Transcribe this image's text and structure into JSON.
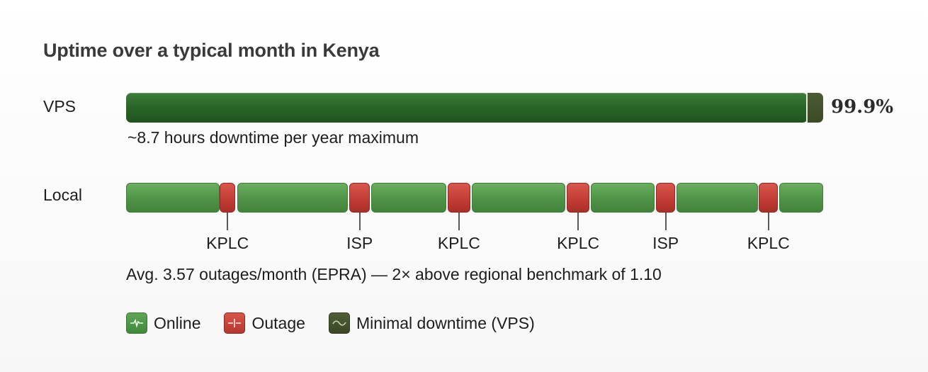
{
  "title": "Uptime over a typical month in Kenya",
  "colors": {
    "online": "#4f9347",
    "outage": "#c13b33",
    "vps_fill": "#2a6628",
    "minimal_downtime": "#3c4a27"
  },
  "vps": {
    "label": "VPS",
    "value_label": "99.9%",
    "uptime_fraction": 0.999,
    "caption": "~8.7 hours downtime per year maximum"
  },
  "local": {
    "label": "Local",
    "caption": "Avg. 3.57 outages/month (EPRA) — 2× above regional benchmark of 1.10"
  },
  "legend": [
    {
      "key": "online",
      "label": "Online",
      "icon": "pulse-icon"
    },
    {
      "key": "outage",
      "label": "Outage",
      "icon": "break-icon"
    },
    {
      "key": "minimal",
      "label": "Minimal downtime (VPS)",
      "icon": "wave-icon"
    }
  ],
  "chart_data": {
    "type": "bar",
    "title": "Uptime over a typical month in Kenya",
    "series": [
      {
        "name": "VPS",
        "uptime_percent": 99.9,
        "segments": [
          {
            "state": "online",
            "start": 0,
            "end": 0.978
          },
          {
            "state": "minimal",
            "start": 0.978,
            "end": 1.0
          }
        ]
      },
      {
        "name": "Local",
        "segments": [
          {
            "state": "online",
            "start": 0.0,
            "end": 0.134
          },
          {
            "state": "outage",
            "start": 0.134,
            "end": 0.157,
            "label": "KPLC"
          },
          {
            "state": "online",
            "start": 0.16,
            "end": 0.318
          },
          {
            "state": "outage",
            "start": 0.32,
            "end": 0.35,
            "label": "ISP"
          },
          {
            "state": "online",
            "start": 0.352,
            "end": 0.459
          },
          {
            "state": "outage",
            "start": 0.461,
            "end": 0.494,
            "label": "KPLC"
          },
          {
            "state": "online",
            "start": 0.496,
            "end": 0.63
          },
          {
            "state": "outage",
            "start": 0.632,
            "end": 0.665,
            "label": "KPLC"
          },
          {
            "state": "online",
            "start": 0.667,
            "end": 0.758
          },
          {
            "state": "outage",
            "start": 0.76,
            "end": 0.788,
            "label": "ISP"
          },
          {
            "state": "online",
            "start": 0.79,
            "end": 0.906
          },
          {
            "state": "outage",
            "start": 0.908,
            "end": 0.935,
            "label": "KPLC"
          },
          {
            "state": "online",
            "start": 0.937,
            "end": 1.0
          }
        ]
      }
    ],
    "legend_position": "bottom-left"
  }
}
